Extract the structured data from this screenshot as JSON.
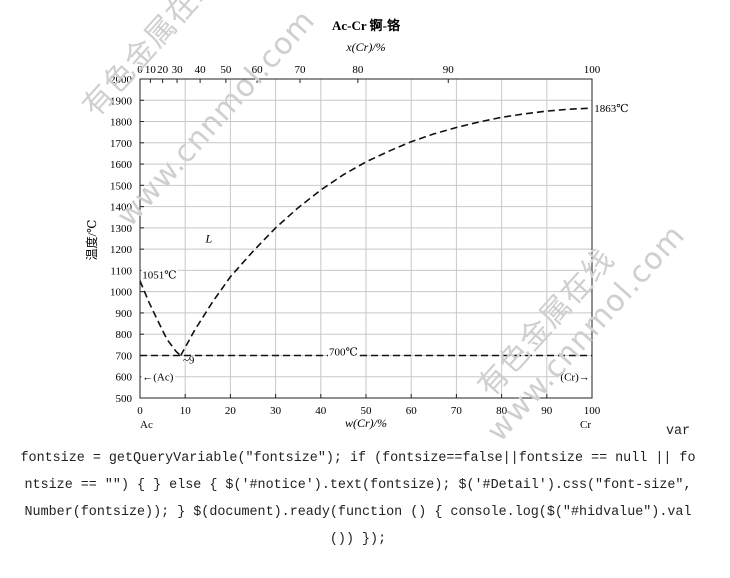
{
  "chart_data": {
    "type": "line",
    "title": "Ac-Cr   锕-铬",
    "xlabel": "w(Cr)/%",
    "x2label": "x(Cr)/%",
    "ylabel": "温度/℃",
    "xlim": [
      0,
      100
    ],
    "ylim": [
      500,
      2000
    ],
    "x_ticks": [
      0,
      10,
      20,
      30,
      40,
      50,
      60,
      70,
      80,
      90,
      100
    ],
    "y_ticks": [
      500,
      600,
      700,
      800,
      900,
      1000,
      1100,
      1200,
      1300,
      1400,
      1500,
      1600,
      1700,
      1800,
      1900,
      2000
    ],
    "x2_ticks": [
      {
        "label": "0",
        "w": 0
      },
      {
        "label": "10",
        "w": 2.3
      },
      {
        "label": "20",
        "w": 5.0
      },
      {
        "label": "30",
        "w": 8.2
      },
      {
        "label": "40",
        "w": 13.3
      },
      {
        "label": "50",
        "w": 19.0
      },
      {
        "label": "60",
        "w": 25.9
      },
      {
        "label": "70",
        "w": 35.4
      },
      {
        "label": "80",
        "w": 48.2
      },
      {
        "label": "90",
        "w": 68.2
      },
      {
        "label": "100",
        "w": 100
      }
    ],
    "grid": true,
    "series": [
      {
        "style": "dashed",
        "x": [
          0,
          2,
          4,
          6,
          8,
          9
        ],
        "y": [
          1051,
          950,
          860,
          775,
          718,
          700
        ]
      },
      {
        "style": "dashed",
        "x": [
          9,
          12,
          16,
          20,
          25,
          30,
          35,
          40,
          45,
          50,
          55,
          60,
          65,
          70,
          75,
          80,
          85,
          90,
          95,
          100
        ],
        "y": [
          700,
          815,
          950,
          1070,
          1190,
          1300,
          1395,
          1478,
          1550,
          1610,
          1660,
          1705,
          1742,
          1772,
          1798,
          1820,
          1836,
          1849,
          1858,
          1863
        ]
      },
      {
        "style": "dashed",
        "x": [
          0,
          100
        ],
        "y": [
          700,
          700
        ]
      }
    ],
    "annotations": [
      {
        "text": "1051℃",
        "x": 0.5,
        "y": 1080
      },
      {
        "text": "1863℃",
        "x": 100.5,
        "y": 1863
      },
      {
        "text": "L",
        "x": 14.5,
        "y": 1250
      },
      {
        "text": "700℃",
        "x": 45,
        "y": 718
      },
      {
        "text": "~9",
        "x": 9.5,
        "y": 680
      },
      {
        "text": "←(Ac)",
        "x": 0.5,
        "y": 600
      },
      {
        "text": "(Cr)→",
        "x": 99.5,
        "y": 600
      }
    ],
    "x_end_labels": {
      "left": "Ac",
      "right": "Cr"
    }
  },
  "watermarks": [
    "有色金属在线",
    "www.cnnmol.com"
  ],
  "page_text": "var fontsize = getQueryVariable(\"fontsize\"); if (fontsize==false||fontsize == null || fontsize == \"\") { } else { $('#notice').text(fontsize); $('#Detail').css(\"font-size\", Number(fontsize)); } $(document).ready(function () { console.log($(\"#hidvalue\").val()) });"
}
